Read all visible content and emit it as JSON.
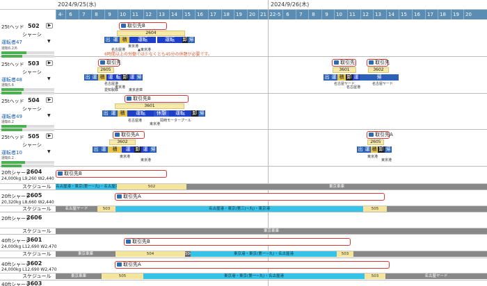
{
  "header": {
    "date1": "2024/9/25(水)",
    "date2": "2024/9/26(木)",
    "hours_day1": [
      "4-",
      "6",
      "7",
      "8",
      "9",
      "10",
      "11",
      "12",
      "13",
      "14",
      "15",
      "16",
      "17",
      "18",
      "19",
      "20",
      "21"
    ],
    "hours_day2": [
      "22-5",
      "6",
      "7",
      "8",
      "9",
      "10",
      "11",
      "12",
      "13",
      "14",
      "15",
      "16",
      "17",
      "18",
      "19",
      "20"
    ]
  },
  "heads": [
    {
      "type": "25tヘッド",
      "num": "502",
      "sub": "シャーシ",
      "driver": "運転者47",
      "partner": "取引先B",
      "chassis": "2604",
      "cells": [
        "出",
        "運",
        "積",
        "運転",
        "運転",
        "卸",
        "帰"
      ],
      "locs": [
        "東京港",
        "名古屋港",
        "▲東京港"
      ],
      "warning": "6時間以上の労働では少なくとも45分の休憩が必要です。",
      "bar1": "運転6.2/6",
      "bar2": "拘束10/13"
    },
    {
      "type": "25tヘッド",
      "num": "503",
      "sub": "シャーシ",
      "driver": "運転者48",
      "partner": "取引先",
      "chassis": "2605",
      "cells": [
        "出",
        "運",
        "積",
        "運",
        "転",
        "卸",
        "運",
        "帰"
      ],
      "locs": [
        "名古屋港",
        "東京港",
        "愛知製鉄",
        "東京倉庫"
      ],
      "partner2": "取引先",
      "partner3": "取引先",
      "chassis2": "3601",
      "chassis3": "3602",
      "cells2": [
        "出",
        "運",
        "積",
        "卸",
        "運",
        "帰"
      ],
      "locs2": [
        "名古屋ヤード",
        "名古屋港",
        "名古屋ヤード"
      ],
      "bar1": "運転5.6",
      "bar2": "拘束10"
    },
    {
      "type": "25tヘッド",
      "num": "504",
      "sub": "シャーシ",
      "driver": "運転者49",
      "partner": "取引先B",
      "chassis": "3601",
      "cells": [
        "出",
        "運",
        "積",
        "運転",
        "休憩",
        "運転",
        "卸",
        "帰"
      ],
      "locs": [
        "名古屋港",
        "東京港",
        "岡崎モータープール"
      ],
      "bar1": "運転6.2",
      "bar2": "拘束10"
    },
    {
      "type": "25tヘッド",
      "num": "505",
      "sub": "シャーシ",
      "driver": "運転者10",
      "partner": "取引先A",
      "chassis": "3602",
      "cells": [
        "出",
        "運",
        "積",
        "運",
        "卸",
        "運",
        "帰"
      ],
      "locs": [
        "東京港",
        "東京港"
      ],
      "partner2": "取引先A",
      "chassis2": "2605",
      "cells2": [
        "出",
        "運",
        "積",
        "卸",
        "帰"
      ],
      "locs2": [
        "東京港",
        "東京港"
      ],
      "bar1": "運転6.2",
      "bar2": "拘束10"
    }
  ],
  "chassis_rows": [
    {
      "type": "20ftシャーシ",
      "num": "2604",
      "spec": "24,000kg L9,260 W2,440",
      "sched_label": "スケジュール",
      "partner": "取引先B",
      "segs": [
        "名古屋港・東京(第一~丸)・名古屋港",
        "502",
        "東京車庫"
      ]
    },
    {
      "type": "20ftシャーシ",
      "num": "2605",
      "spec": "20,320kg L8,660 W2,440",
      "sched_label": "スケジュール",
      "partner": "取引先A",
      "segs": [
        "名古屋ヤード",
        "503",
        "名古屋港・東京(第三(~丸)・東京港",
        "505"
      ]
    },
    {
      "type": "20ftシャーシ",
      "num": "2606",
      "spec": "",
      "sched_label": "スケジュール",
      "partner": "",
      "segs": [
        "東京車庫"
      ]
    },
    {
      "type": "40ftシャーシ",
      "num": "3601",
      "spec": "24,000kg L12,690 W2,470",
      "sched_label": "スケジュール",
      "partner": "取引先B",
      "segs": [
        "東京車庫",
        "504",
        "504",
        "東京港・東京(第一~丸)・名古屋港",
        "503"
      ]
    },
    {
      "type": "40ftシャーシ",
      "num": "3602",
      "spec": "24,000kg L12,690 W2,470",
      "sched_label": "スケジュール",
      "partner": "取引先A",
      "segs": [
        "東京車庫",
        "505",
        "東京港・東京(第一~丸)・名古屋港",
        "503",
        "名古屋ヤード"
      ]
    },
    {
      "type": "40ftシャーシ",
      "num": "3603",
      "spec": "",
      "sched_label": "",
      "partner": "",
      "segs": []
    }
  ],
  "colors": {
    "header_blue": "#5b8db3",
    "cyan": "#37c3e8",
    "partner_border": "#dd3333",
    "warn": "#e05b2d"
  }
}
